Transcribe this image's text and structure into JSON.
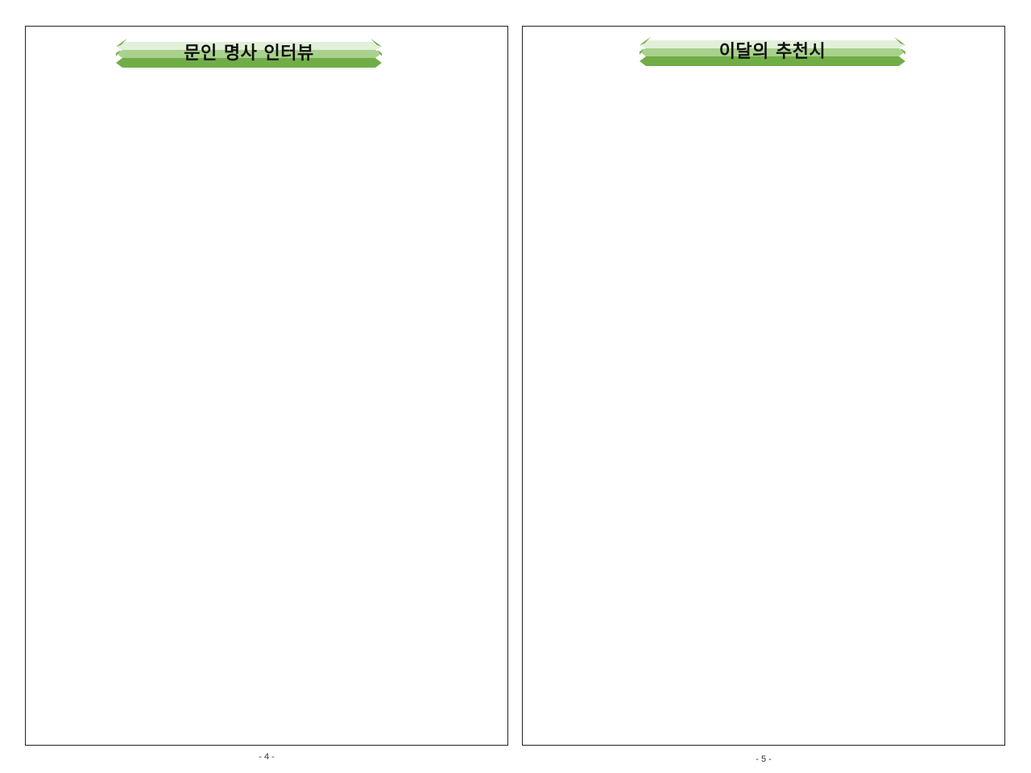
{
  "pages": [
    {
      "title": "문인 명사 인터뷰",
      "page_number": "- 4 -"
    },
    {
      "title": "이달의 추천시",
      "page_number": "- 5 -"
    }
  ],
  "colors": {
    "banner_dark": "#70ad47",
    "banner_mid": "#a9d18e",
    "banner_light": "#e2f0d9",
    "border": "#222222"
  }
}
